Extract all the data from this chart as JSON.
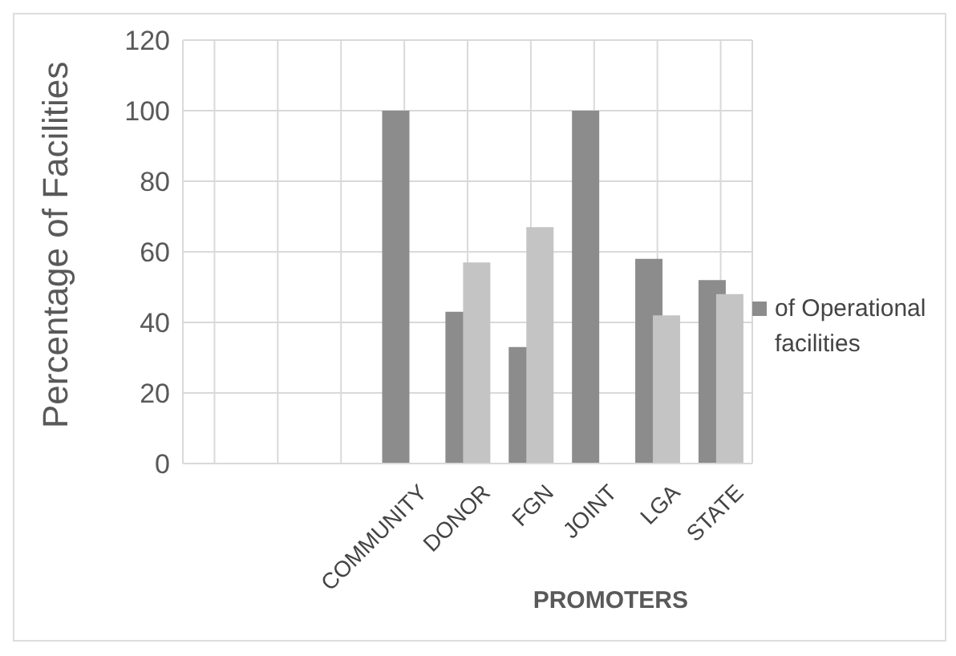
{
  "chart_data": {
    "type": "bar",
    "xlabel": "PROMOTERS",
    "ylabel": "Percentage of Facilities",
    "categories": [
      null,
      null,
      null,
      "COMMUNITY",
      "DONOR",
      "FGN",
      "JOINT",
      "LGA",
      "STATE"
    ],
    "series": [
      {
        "name": "of Operational facilities",
        "color": "#8c8c8c",
        "values": [
          null,
          null,
          null,
          100,
          43,
          33,
          100,
          58,
          52
        ]
      },
      {
        "color": "#c4c4c4",
        "values": [
          null,
          null,
          null,
          null,
          57,
          67,
          null,
          42,
          48
        ]
      }
    ],
    "ylim": [
      0,
      120
    ],
    "yticks": [
      0,
      20,
      40,
      60,
      80,
      100,
      120
    ],
    "grid": true,
    "legend": "right"
  }
}
